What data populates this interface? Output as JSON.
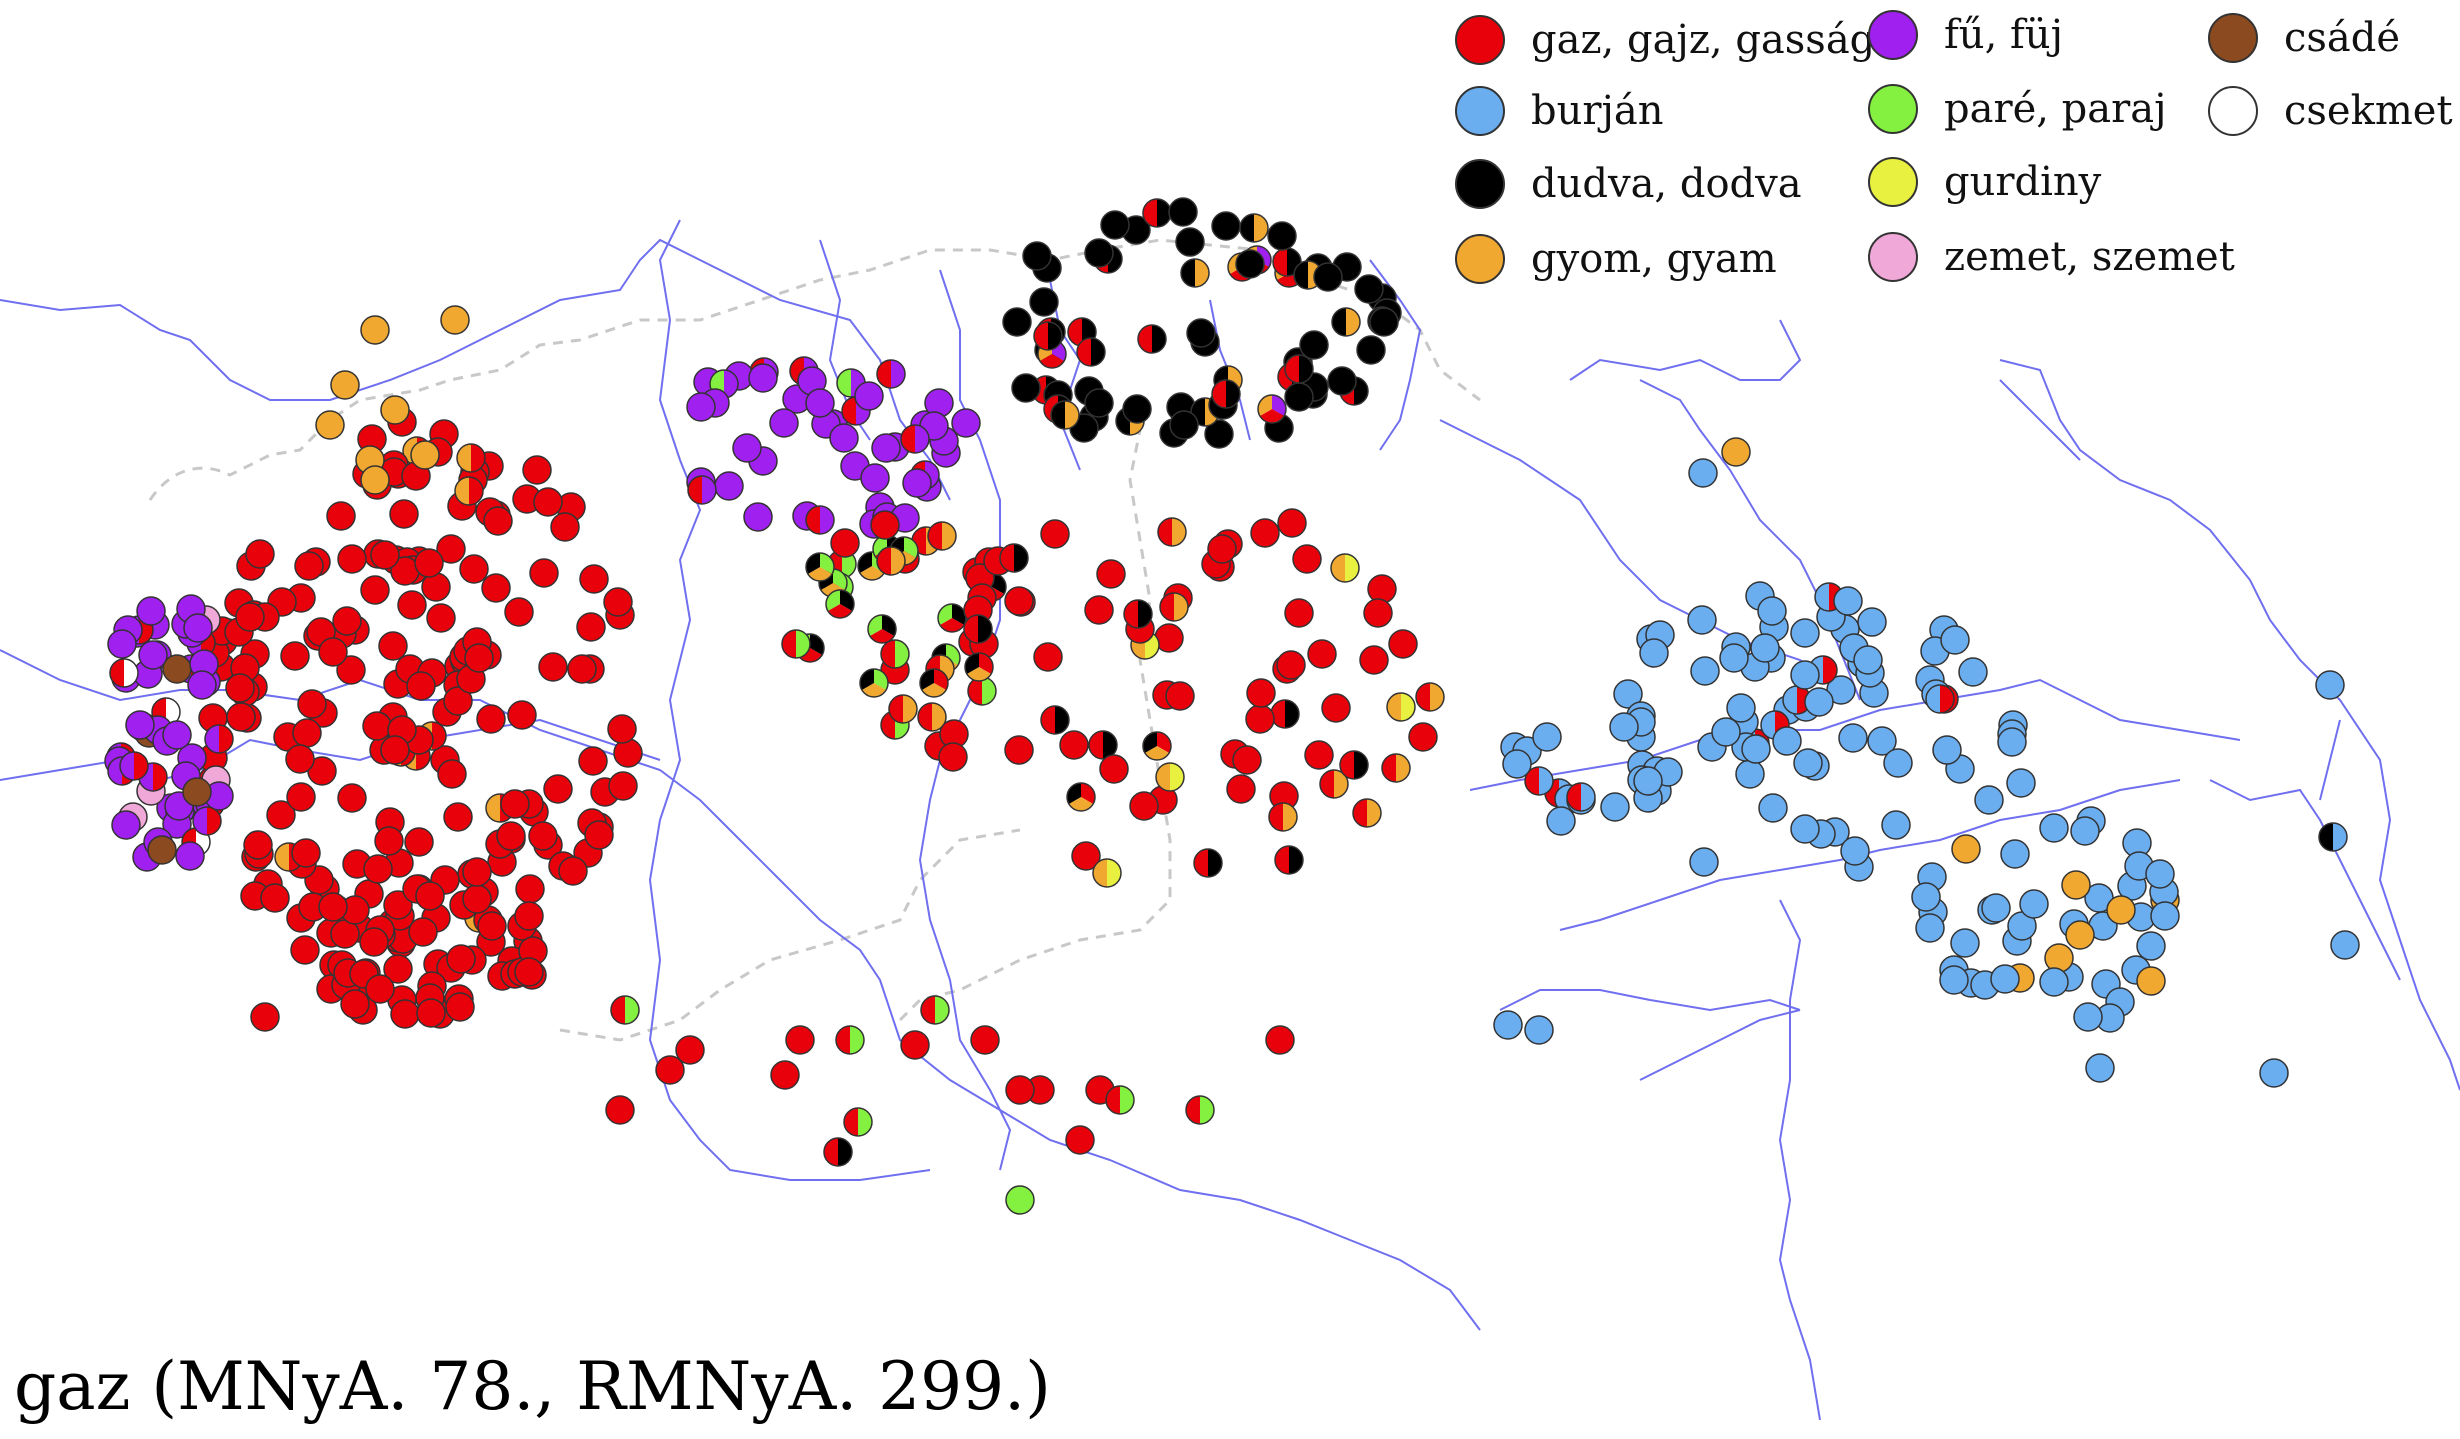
{
  "caption": "gaz (MNyA. 78., RMNyA. 299.)",
  "colors": {
    "river": "#6f6ff0",
    "border": "#c8c8c8",
    "dot_stroke": "#333333"
  },
  "legend": [
    {
      "id": "gaz",
      "label": "gaz, gajz, gasság",
      "color": "#e8000b"
    },
    {
      "id": "fu",
      "label": "fű, füj",
      "color": "#a020f0"
    },
    {
      "id": "csade",
      "label": "csádé",
      "color": "#8b4a1f"
    },
    {
      "id": "burjan",
      "label": "burján",
      "color": "#6aaef0"
    },
    {
      "id": "pare",
      "label": "paré, paraj",
      "color": "#84f040"
    },
    {
      "id": "csekmet",
      "label": "csekmet",
      "color": "#ffffff"
    },
    {
      "id": "dudva",
      "label": "dudva, dodva",
      "color": "#000000"
    },
    {
      "id": "gurdiny",
      "label": "gurdiny",
      "color": "#e8f040"
    },
    {
      "id": "gyom",
      "label": "gyom, gyam",
      "color": "#f0a830"
    },
    {
      "id": "zemet",
      "label": "zemet, szemet",
      "color": "#f0a8d8"
    }
  ]
}
